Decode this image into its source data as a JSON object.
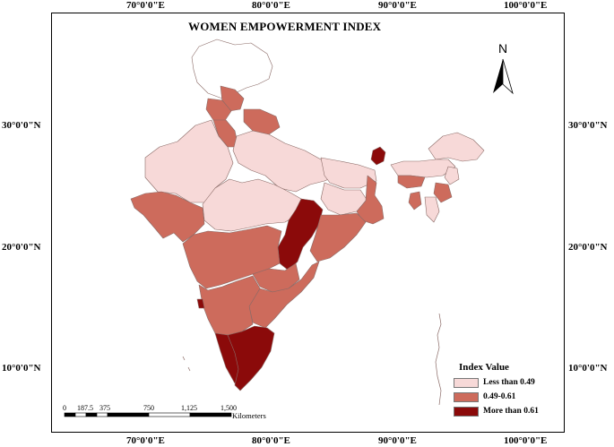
{
  "map": {
    "title": "WOMEN EMPOWERMENT INDEX",
    "north_label": "N",
    "coordinates": {
      "top_lon": [
        "70°0'0\"E",
        "80°0'0\"E",
        "90°0'0\"E",
        "100°0'0\"E"
      ],
      "bottom_lon": [
        "70°0'0\"E",
        "80°0'0\"E",
        "90°0'0\"E",
        "100°0'0\"E"
      ],
      "left_lat": [
        "30°0'0\"N",
        "20°0'0\"N",
        "10°0'0\"N"
      ],
      "right_lat": [
        "30°0'0\"N",
        "20°0'0\"N",
        "10°0'0\"N"
      ]
    },
    "legend": {
      "title": "Index Value",
      "items": [
        {
          "label": "Less than 0.49",
          "color": "#f7d9d8"
        },
        {
          "label": "0.49-0.61",
          "color": "#cd6b5c"
        },
        {
          "label": "More than 0.61",
          "color": "#8b0a0a"
        }
      ]
    },
    "scale_bar": {
      "ticks": [
        "0",
        "187.5",
        "375",
        "750",
        "1,125",
        "1,500"
      ],
      "unit": "Kilometers"
    },
    "colors": {
      "low": "#f7d9d8",
      "mid": "#cd6b5c",
      "high": "#8b0a0a",
      "unclassified": "#ffffff",
      "border": "#8a6a66"
    }
  }
}
